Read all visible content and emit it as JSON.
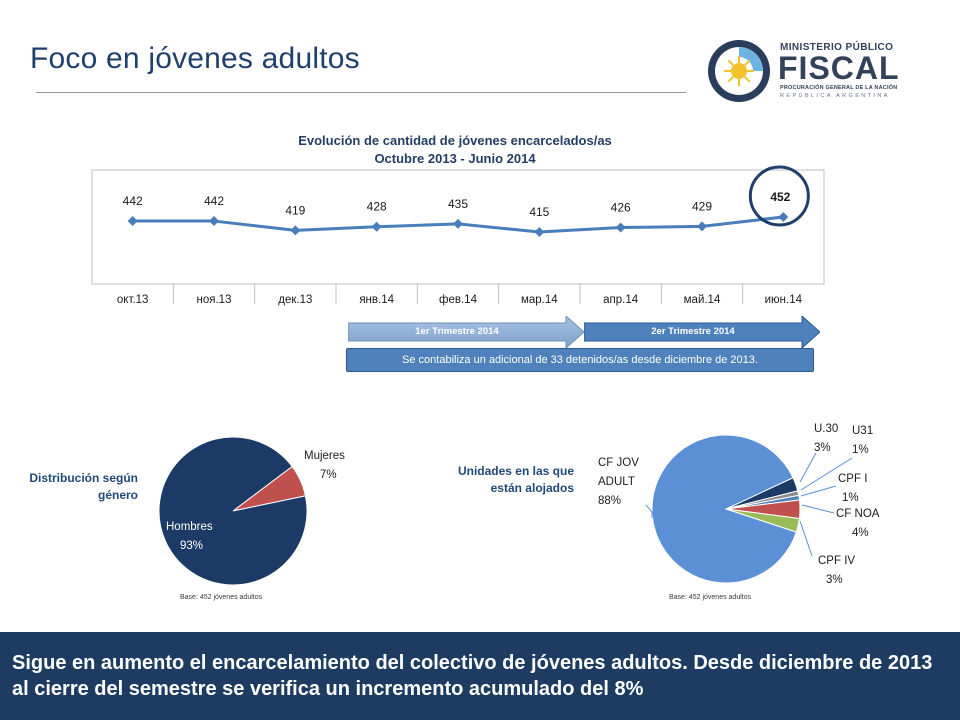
{
  "slide": {
    "title": "Foco en jóvenes adultos"
  },
  "logo": {
    "line1": "MINISTERIO PÚBLICO",
    "line2": "FISCAL",
    "line3": "PROCURACIÓN GENERAL DE LA NACIÓN",
    "line4": "REPÚBLICA ARGENTINA"
  },
  "chart_data": [
    {
      "type": "line",
      "title": "Evolución de cantidad de jóvenes encarcelados/as",
      "subtitle": "Octubre 2013 - Junio 2014",
      "categories": [
        "окт.13",
        "ноя.13",
        "дек.13",
        "янв.14",
        "фев.14",
        "мар.14",
        "апр.14",
        "май.14",
        "июн.14"
      ],
      "values": [
        442,
        442,
        419,
        428,
        435,
        415,
        426,
        429,
        452
      ],
      "highlight_index": 8,
      "series_color": "#4a7ebb"
    },
    {
      "type": "pie",
      "title": "Distribución según género",
      "slices": [
        {
          "label": "Hombres",
          "pct": "93%",
          "value": 93,
          "color": "#1b3a66"
        },
        {
          "label": "Mujeres",
          "pct": "7%",
          "value": 7,
          "color": "#c0504d"
        }
      ],
      "base": "Base: 452 jóvenes adultos"
    },
    {
      "type": "pie",
      "title": "Unidades en las que están alojados",
      "slices": [
        {
          "label": "CF JOV ADULT",
          "pct": "88%",
          "value": 88,
          "color": "#5b8fd6"
        },
        {
          "label": "U.30",
          "pct": "3%",
          "value": 3,
          "color": "#1b3a66"
        },
        {
          "label": "U31",
          "pct": "1%",
          "value": 1,
          "color": "#8c8c8c"
        },
        {
          "label": "CPF I",
          "pct": "1%",
          "value": 1,
          "color": "#4f81bd"
        },
        {
          "label": "CF NOA",
          "pct": "4%",
          "value": 4,
          "color": "#c0504d"
        },
        {
          "label": "CPF IV",
          "pct": "3%",
          "value": 3,
          "color": "#9bbb59"
        }
      ],
      "base": "Base: 452 jóvenes adultos"
    }
  ],
  "trimesters": {
    "first": "1er Trimestre 2014",
    "second": "2er Trimestre 2014"
  },
  "note": "Se contabiliza un adicional de 33 detenidos/as desde diciembre de 2013.",
  "gender_label": "Distribución según género",
  "units_label": "Unidades en las que están alojados",
  "footer": "Sigue en aumento el encarcelamiento del colectivo de jóvenes adultos. Desde diciembre de 2013 al cierre del semestre se verifica un incremento acumulado del 8%",
  "colors": {
    "navy": "#1e3b62",
    "accent": "#4f81bd",
    "red": "#c0504d",
    "green": "#9bbb59"
  }
}
